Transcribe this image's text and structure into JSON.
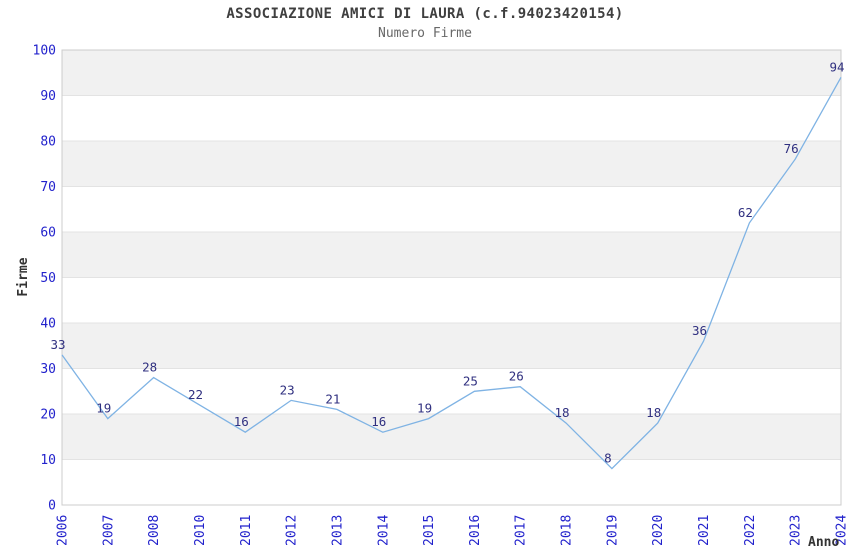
{
  "chart_data": {
    "type": "line",
    "title": "ASSOCIAZIONE AMICI DI LAURA (c.f.94023420154)",
    "subtitle": "Numero Firme",
    "xlabel": "Anno",
    "ylabel": "Firme",
    "categories": [
      "2006",
      "2007",
      "2008",
      "2010",
      "2011",
      "2012",
      "2013",
      "2014",
      "2015",
      "2016",
      "2017",
      "2018",
      "2019",
      "2020",
      "2021",
      "2022",
      "2023",
      "2024"
    ],
    "values": [
      33,
      19,
      28,
      22,
      16,
      23,
      21,
      16,
      19,
      25,
      26,
      18,
      8,
      18,
      36,
      62,
      76,
      94
    ],
    "ylim": [
      0,
      100
    ],
    "y_ticks": [
      0,
      10,
      20,
      30,
      40,
      50,
      60,
      70,
      80,
      90,
      100
    ],
    "grid": true,
    "band_fill": "alternating-horizontal",
    "data_labels": true,
    "legend": "none",
    "colors": {
      "line": "#7fb3e4",
      "tick_label": "#2222cc",
      "data_label": "#303080",
      "band_gray": "#f1f1f1",
      "band_white": "#ffffff",
      "grid_line": "#e3e3e3",
      "plot_border": "#cccccc",
      "title": "#3f3f3f",
      "subtitle": "#686868",
      "axis_title": "#333333"
    }
  }
}
